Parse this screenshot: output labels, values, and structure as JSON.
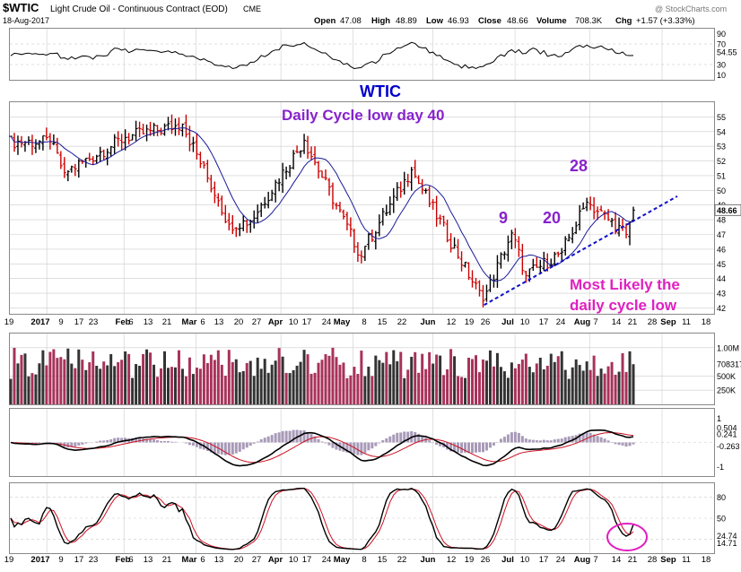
{
  "header": {
    "symbol": "$WTIC",
    "title": "Light Crude Oil - Continuous Contract (EOD)",
    "exchange": "CME",
    "date": "18-Aug-2017",
    "open_label": "Open",
    "open": "47.08",
    "high_label": "High",
    "high": "48.89",
    "low_label": "Low",
    "low": "46.93",
    "close_label": "Close",
    "close": "48.66",
    "volume_label": "Volume",
    "volume": "708.3K",
    "chg_label": "Chg",
    "chg": "+1.57 (+3.33%)",
    "watermark": "@ StockCharts.com"
  },
  "annotations": {
    "wtic": "WTIC",
    "cycle_low": "Daily Cycle low day 40",
    "n9": "9",
    "n20": "20",
    "n28": "28",
    "most_likely_1": "Most Likely the",
    "most_likely_2": "daily cycle low"
  },
  "colors": {
    "up_bar": "#000000",
    "down_bar": "#cc0000",
    "ma": "#1a1a99",
    "trendline": "#1010cc",
    "annotation_blue": "#0000cc",
    "annotation_purple": "#8822cc",
    "annotation_magenta": "#e020c0",
    "volume_up": "#333333",
    "volume_down": "#a8325a",
    "macd_hist": "#a89ab8",
    "signal": "#cc1122",
    "grid": "#cccccc"
  },
  "x_axis": {
    "labels": [
      "19",
      "2017",
      "9",
      "17",
      "23",
      "Feb",
      "6",
      "13",
      "21",
      "Mar",
      "6",
      "13",
      "20",
      "27",
      "Apr",
      "10",
      "17",
      "24",
      "May",
      "8",
      "15",
      "22",
      "Jun",
      "12",
      "19",
      "26",
      "Jul",
      "10",
      "17",
      "24",
      "Aug",
      "7",
      "14",
      "21",
      "28",
      "Sep",
      "11",
      "18"
    ]
  },
  "chart_data": [
    {
      "type": "line",
      "name": "rsi_panel",
      "y_ticks": [
        "90",
        "70",
        "54.55",
        "30",
        "10"
      ],
      "ylim": [
        0,
        100
      ]
    },
    {
      "type": "candlestick",
      "name": "price_panel",
      "y_ticks": [
        "55",
        "54",
        "53",
        "52",
        "51",
        "50",
        "49",
        "48.66",
        "48",
        "47",
        "46",
        "45",
        "44",
        "43",
        "42"
      ],
      "ylim": [
        41.6,
        56
      ],
      "ma_label": "",
      "checkpoints": [
        {
          "date": "2017-01-03",
          "close": 53.3
        },
        {
          "date": "2017-01-09",
          "close": 51.2
        },
        {
          "date": "2017-02-01",
          "close": 53.6
        },
        {
          "date": "2017-02-23",
          "close": 54.5
        },
        {
          "date": "2017-03-09",
          "close": 49.3
        },
        {
          "date": "2017-03-14",
          "close": 47.7
        },
        {
          "date": "2017-03-22",
          "close": 47.9
        },
        {
          "date": "2017-04-12",
          "close": 53.4
        },
        {
          "date": "2017-05-04",
          "close": 45.5
        },
        {
          "date": "2017-05-05",
          "close": 46.2
        },
        {
          "date": "2017-05-24",
          "close": 51.4
        },
        {
          "date": "2017-06-21",
          "close": 42.5
        },
        {
          "date": "2017-07-03",
          "close": 47.1
        },
        {
          "date": "2017-07-07",
          "close": 44.2
        },
        {
          "date": "2017-07-21",
          "close": 45.8
        },
        {
          "date": "2017-08-01",
          "close": 49.2
        },
        {
          "date": "2017-08-16",
          "close": 47.0
        },
        {
          "date": "2017-08-18",
          "close": 48.66
        }
      ],
      "trendline": {
        "from": {
          "date": "2017-06-21",
          "value": 42.2
        },
        "to": {
          "date": "2017-09-06",
          "value": 49.6
        }
      }
    },
    {
      "type": "bar",
      "name": "volume_panel",
      "y_ticks": [
        "1.00M",
        "708317",
        "500K",
        "250K"
      ],
      "last_value": "708317"
    },
    {
      "type": "line",
      "name": "macd_panel",
      "y_ticks": [
        "1",
        "0.504",
        "0.241",
        "-0.263",
        "-1"
      ],
      "ylim": [
        -1.4,
        1.4
      ]
    },
    {
      "type": "line",
      "name": "stochastic_panel",
      "y_ticks": [
        "80",
        "50",
        "24.74",
        "14.71"
      ],
      "ylim": [
        0,
        100
      ]
    }
  ]
}
